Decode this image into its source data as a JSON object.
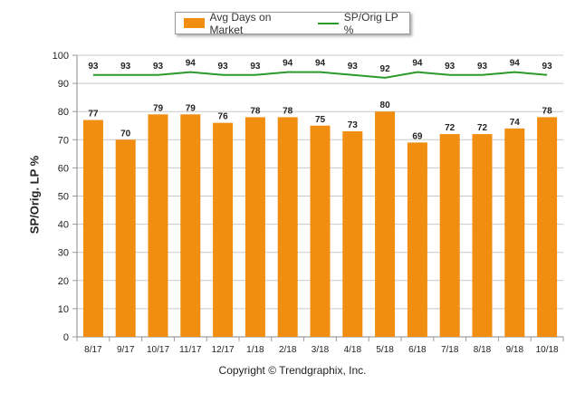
{
  "legend": {
    "bar_label": "Avg Days on Market",
    "line_label": "SP/Orig LP %"
  },
  "footer": "Copyright © Trendgraphix, Inc.",
  "colors": {
    "bar": "#f18d10",
    "line": "#2a9a2a",
    "grid": "#c8c8c8"
  },
  "chart_data": {
    "type": "bar",
    "categories": [
      "8/17",
      "9/17",
      "10/17",
      "11/17",
      "12/17",
      "1/18",
      "2/18",
      "3/18",
      "4/18",
      "5/18",
      "6/18",
      "7/18",
      "8/18",
      "9/18",
      "10/18"
    ],
    "series": [
      {
        "name": "Avg Days on Market",
        "type": "bar",
        "values": [
          77,
          70,
          79,
          79,
          76,
          78,
          78,
          75,
          73,
          80,
          69,
          72,
          72,
          74,
          78
        ]
      },
      {
        "name": "SP/Orig LP %",
        "type": "line",
        "values": [
          93,
          93,
          93,
          94,
          93,
          93,
          94,
          94,
          93,
          92,
          94,
          93,
          93,
          94,
          93
        ]
      }
    ],
    "ylabel": "SP/Orig. LP %",
    "ylim": [
      0,
      100
    ],
    "yticks": [
      0,
      10,
      20,
      30,
      40,
      50,
      60,
      70,
      80,
      90,
      100
    ],
    "grid": true,
    "legend_position": "top"
  }
}
